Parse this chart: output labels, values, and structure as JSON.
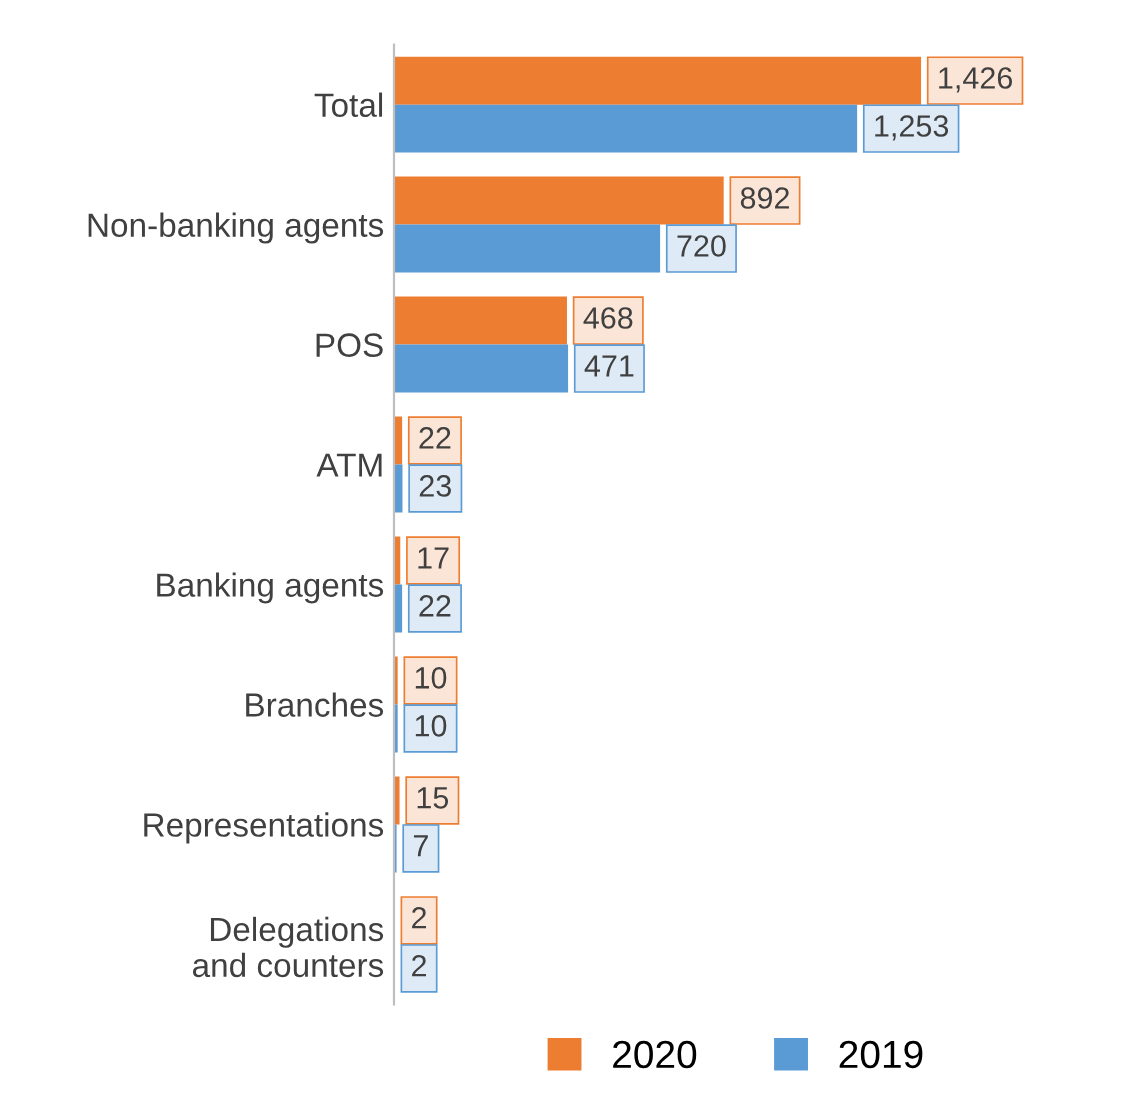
{
  "chart_data": {
    "type": "bar",
    "orientation": "horizontal",
    "categories": [
      "Total",
      "Non-banking agents",
      "POS",
      "ATM",
      "Banking agents",
      "Branches",
      "Representations",
      "Delegations\nand counters"
    ],
    "series": [
      {
        "name": "2020",
        "color": "#ed7d31",
        "values": [
          1426,
          892,
          468,
          22,
          17,
          10,
          15,
          2
        ],
        "value_labels": [
          "1,426",
          "892",
          "468",
          "22",
          "17",
          "10",
          "15",
          "2"
        ]
      },
      {
        "name": "2019",
        "color": "#5b9bd5",
        "values": [
          1253,
          720,
          471,
          23,
          22,
          10,
          7,
          2
        ],
        "value_labels": [
          "1,253",
          "720",
          "471",
          "23",
          "22",
          "10",
          "7",
          "2"
        ]
      }
    ],
    "legend": "bottom",
    "grid": false
  }
}
